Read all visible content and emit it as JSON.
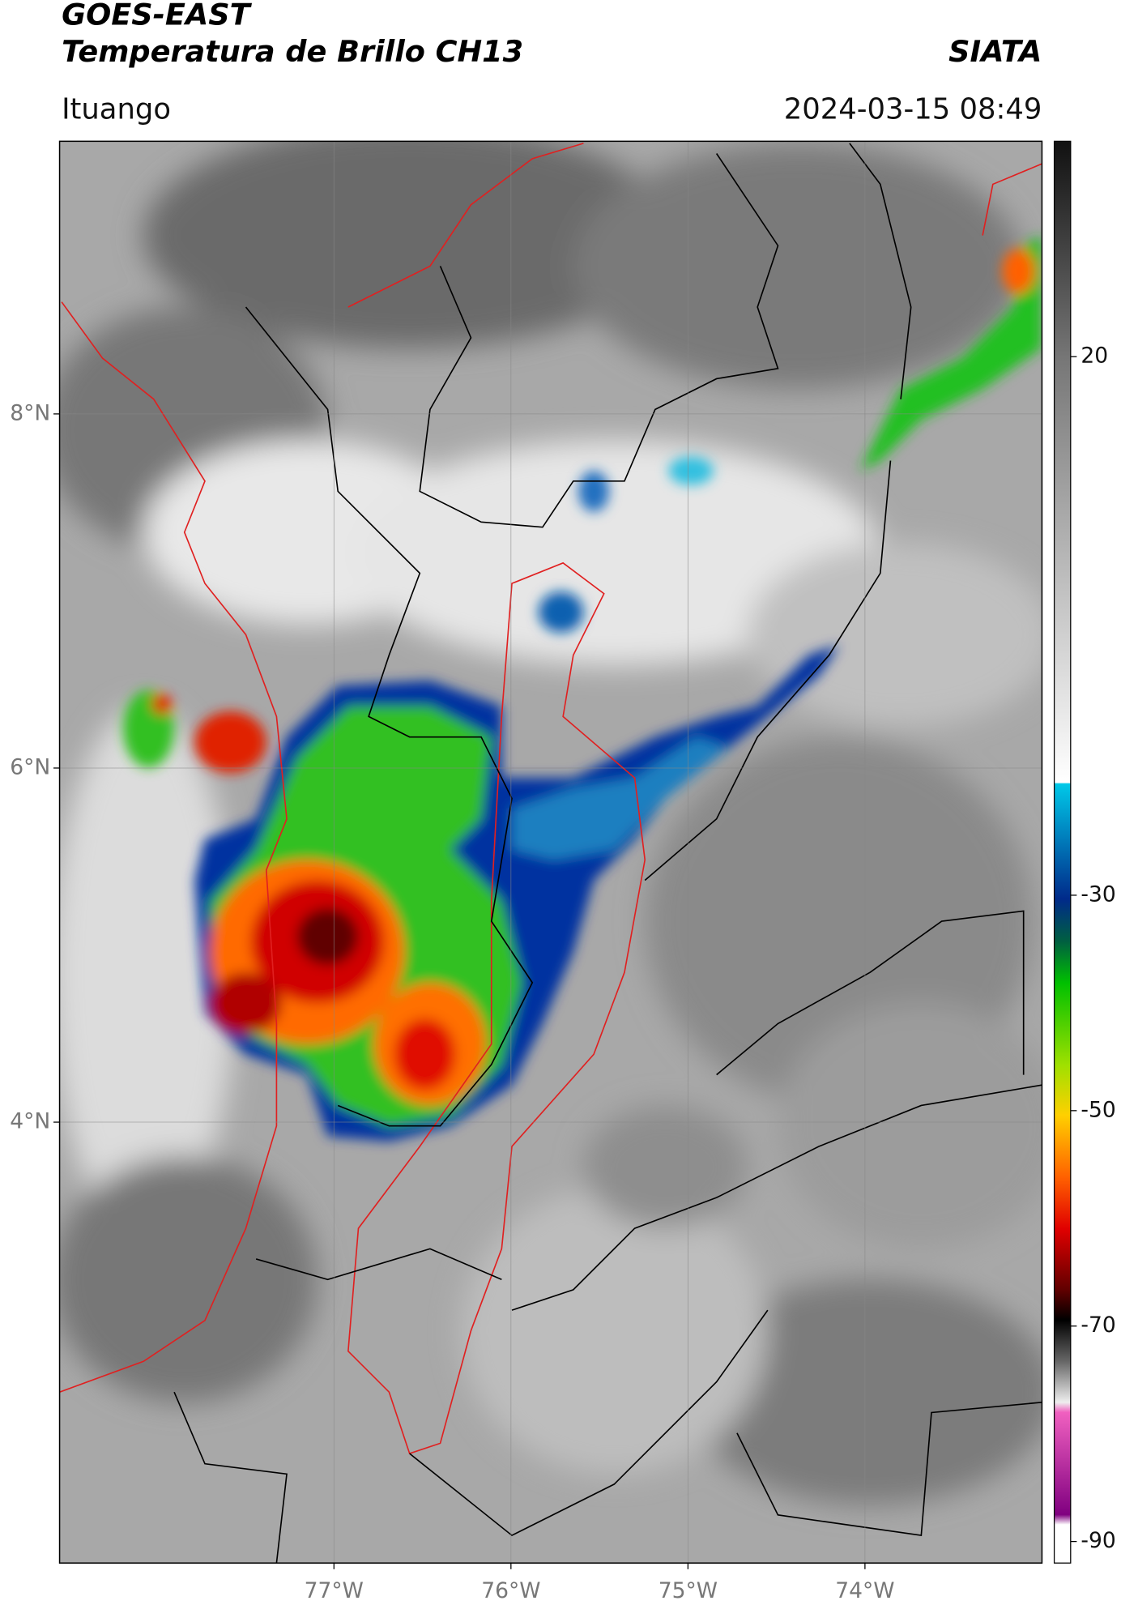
{
  "header": {
    "title_line1": "GOES-EAST",
    "title_line2": "Temperatura de Brillo CH13",
    "agency": "SIATA",
    "location": "Ituango",
    "timestamp": "2024-03-15 08:49"
  },
  "map": {
    "xlim": [
      -78.55,
      -73.0
    ],
    "ylim": [
      1.51,
      9.54
    ],
    "xticks": [
      {
        "value": -77,
        "label": "77°W"
      },
      {
        "value": -76,
        "label": "76°W"
      },
      {
        "value": -75,
        "label": "75°W"
      },
      {
        "value": -74,
        "label": "74°W"
      }
    ],
    "yticks": [
      {
        "value": 8,
        "label": "8°N"
      },
      {
        "value": 6,
        "label": "6°N"
      },
      {
        "value": 4,
        "label": "4°N"
      }
    ],
    "grid": true
  },
  "colorbar": {
    "lim": [
      -92,
      40
    ],
    "ticks": [
      20,
      -30,
      -50,
      -70,
      -90
    ]
  }
}
